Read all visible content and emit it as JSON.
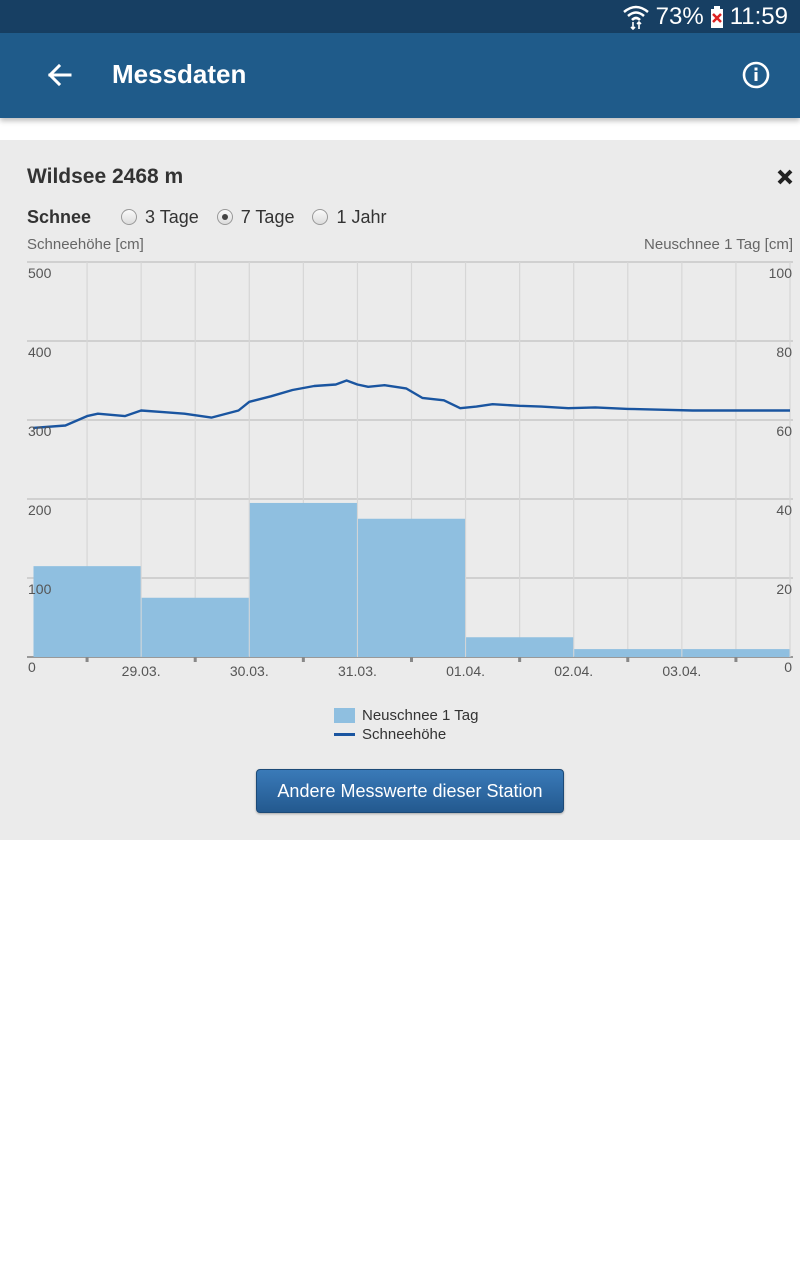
{
  "status_bar": {
    "battery": "73%",
    "time": "11:59"
  },
  "app_bar": {
    "title": "Messdaten",
    "back_icon": "arrow-left-icon",
    "info_icon": "info-icon"
  },
  "card": {
    "station": "Wildsee 2468 m",
    "category_label": "Schnee",
    "ranges": [
      {
        "label": "3 Tage",
        "selected": false
      },
      {
        "label": "7 Tage",
        "selected": true
      },
      {
        "label": "1 Jahr",
        "selected": false
      }
    ],
    "button_label": "Andere Messwerte dieser Station"
  },
  "chart_data": {
    "type": "bar",
    "left_axis_title": "Schneehöhe [cm]",
    "right_axis_title": "Neuschnee 1 Tag [cm]",
    "left_ticks": [
      "0",
      "100",
      "200",
      "300",
      "400",
      "500"
    ],
    "right_ticks": [
      "0",
      "20",
      "40",
      "60",
      "80",
      "100"
    ],
    "x_ticks": [
      "29.03.",
      "30.03.",
      "31.03.",
      "01.04.",
      "02.04.",
      "03.04."
    ],
    "ylim_left": [
      0,
      500
    ],
    "ylim_right": [
      0,
      100
    ],
    "grid": true,
    "legend_position": "bottom",
    "series": [
      {
        "name": "Neuschnee 1 Tag",
        "type": "bar",
        "axis": "right",
        "color": "#8fbfe0",
        "x_start": [
          0,
          1,
          2,
          3,
          4,
          5,
          6
        ],
        "values": [
          23,
          15,
          39,
          35,
          5,
          2,
          2
        ]
      },
      {
        "name": "Schneehöhe",
        "type": "line",
        "axis": "left",
        "color": "#1a55a0",
        "x": [
          0,
          0.3,
          0.5,
          0.6,
          0.85,
          1.0,
          1.2,
          1.4,
          1.65,
          1.9,
          2.0,
          2.2,
          2.4,
          2.6,
          2.8,
          2.9,
          3.0,
          3.1,
          3.25,
          3.45,
          3.6,
          3.8,
          3.95,
          4.1,
          4.25,
          4.5,
          4.7,
          4.95,
          5.2,
          5.5,
          5.8,
          6.1,
          6.4,
          6.75,
          7.0
        ],
        "values": [
          290,
          293,
          305,
          308,
          305,
          312,
          310,
          308,
          303,
          312,
          323,
          330,
          338,
          343,
          345,
          350,
          345,
          342,
          344,
          340,
          328,
          325,
          315,
          317,
          320,
          318,
          317,
          315,
          316,
          314,
          313,
          312,
          312,
          312,
          312
        ]
      }
    ]
  }
}
